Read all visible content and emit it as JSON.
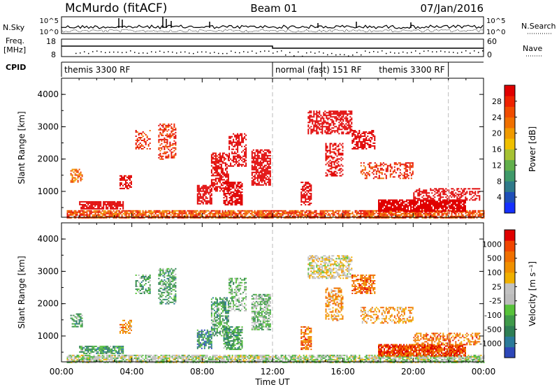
{
  "header": {
    "station": "McMurdo (fitACF)",
    "beam": "Beam 01",
    "date": "07/Jan/2016"
  },
  "strip_labels": {
    "nsky": "N.Sky",
    "nsky_hi": "10^5",
    "nsky_lo": "10^0",
    "nsearch": "N.Search",
    "nsearch_hi": "10^5",
    "nsearch_lo": "10^0",
    "freq_line1": "Freq.",
    "freq_line2": "[MHz]",
    "freq_hi": "18",
    "freq_lo": "8",
    "nave": "Nave",
    "nave_hi": "60",
    "nave_lo": "0",
    "cpid": "CPID"
  },
  "cpid_segments": [
    {
      "label": "themis 3300 RF",
      "start_hour": 0.0,
      "end_hour": 12.0
    },
    {
      "label": "normal (fast) 151 RF",
      "start_hour": 12.0,
      "end_hour": 14.8
    },
    {
      "label": "themis 3300 RF",
      "start_hour": 14.8,
      "end_hour": 22.0
    }
  ],
  "chart_data": [
    {
      "type": "heatmap",
      "name": "power-panel",
      "xlabel": "Time UT",
      "ylabel": "Slant Range [km]",
      "xlim": [
        0,
        24
      ],
      "ylim": [
        200,
        4500
      ],
      "x_ticks": [
        "00:00",
        "04:00",
        "08:00",
        "12:00",
        "16:00",
        "20:00",
        "00:00"
      ],
      "y_ticks": [
        "1000",
        "2000",
        "3000",
        "4000"
      ],
      "colorbar": {
        "label": "Power [dB]",
        "range": [
          0,
          32
        ],
        "ticks": [
          "4",
          "8",
          "12",
          "16",
          "20",
          "24",
          "28"
        ],
        "colors": [
          "#1530ff",
          "#1f4fb8",
          "#2f7a8a",
          "#3f9a6a",
          "#62b04c",
          "#a6c233",
          "#f0c000",
          "#f09a00",
          "#f07000",
          "#f04c00",
          "#ee2200",
          "#e00000"
        ]
      },
      "blobs": [
        {
          "t0": 0.3,
          "t1": 24,
          "r0": 200,
          "r1": 420,
          "v": 9,
          "d": 0.8
        },
        {
          "t0": 1.0,
          "t1": 3.5,
          "r0": 450,
          "r1": 700,
          "v": 20,
          "d": 0.8
        },
        {
          "t0": 0.5,
          "t1": 1.2,
          "r0": 1300,
          "r1": 1700,
          "v": 8,
          "d": 0.5
        },
        {
          "t0": 3.3,
          "t1": 4.0,
          "r0": 1100,
          "r1": 1500,
          "v": 12,
          "d": 0.6
        },
        {
          "t0": 4.2,
          "t1": 5.0,
          "r0": 2300,
          "r1": 2900,
          "v": 10,
          "d": 0.4
        },
        {
          "t0": 5.5,
          "t1": 6.5,
          "r0": 2000,
          "r1": 3100,
          "v": 10,
          "d": 0.5
        },
        {
          "t0": 7.7,
          "t1": 8.5,
          "r0": 600,
          "r1": 1200,
          "v": 22,
          "d": 0.7
        },
        {
          "t0": 8.5,
          "t1": 9.5,
          "r0": 1000,
          "r1": 2200,
          "v": 12,
          "d": 0.6
        },
        {
          "t0": 9.2,
          "t1": 10.3,
          "r0": 600,
          "r1": 1300,
          "v": 24,
          "d": 0.7
        },
        {
          "t0": 9.5,
          "t1": 10.5,
          "r0": 1800,
          "r1": 2800,
          "v": 14,
          "d": 0.5
        },
        {
          "t0": 10.8,
          "t1": 11.9,
          "r0": 1200,
          "r1": 2300,
          "v": 20,
          "d": 0.7
        },
        {
          "t0": 13.6,
          "t1": 14.2,
          "r0": 600,
          "r1": 1300,
          "v": 24,
          "d": 0.7
        },
        {
          "t0": 14.0,
          "t1": 16.5,
          "r0": 2800,
          "r1": 3500,
          "v": 14,
          "d": 0.6
        },
        {
          "t0": 15.0,
          "t1": 16.0,
          "r0": 1500,
          "r1": 2500,
          "v": 12,
          "d": 0.5
        },
        {
          "t0": 16.5,
          "t1": 17.8,
          "r0": 2300,
          "r1": 2900,
          "v": 20,
          "d": 0.6
        },
        {
          "t0": 17.0,
          "t1": 20.0,
          "r0": 1400,
          "r1": 1900,
          "v": 10,
          "d": 0.4
        },
        {
          "t0": 18.0,
          "t1": 23.0,
          "r0": 400,
          "r1": 750,
          "v": 27,
          "d": 0.85
        },
        {
          "t0": 20.0,
          "t1": 23.8,
          "r0": 750,
          "r1": 1100,
          "v": 14,
          "d": 0.5
        }
      ]
    },
    {
      "type": "heatmap",
      "name": "velocity-panel",
      "xlabel": "Time UT",
      "ylabel": "Slant Range [km]",
      "xlim": [
        0,
        24
      ],
      "ylim": [
        200,
        4500
      ],
      "x_ticks": [
        "00:00",
        "04:00",
        "08:00",
        "12:00",
        "16:00",
        "20:00",
        "00:00"
      ],
      "y_ticks": [
        "1000",
        "2000",
        "3000",
        "4000"
      ],
      "colorbar": {
        "label": "Velocity [m s⁻¹]",
        "range": [
          -1250,
          1250
        ],
        "ticks": [
          "1000",
          "500",
          "100",
          "25",
          "-25",
          "-100",
          "-500",
          "-1000"
        ],
        "colors": [
          "#2d47b8",
          "#2a7a9a",
          "#2e7f55",
          "#3f9a4a",
          "#57c23a",
          "#bcbcbc",
          "#c2c2c2",
          "#f0b000",
          "#f09000",
          "#f07000",
          "#f04600",
          "#e00000"
        ]
      },
      "blobs": [
        {
          "t0": 0.3,
          "t1": 24,
          "r0": 200,
          "r1": 420,
          "v": 5,
          "d": 0.8
        },
        {
          "t0": 1.0,
          "t1": 3.5,
          "r0": 450,
          "r1": 700,
          "v": 3,
          "d": 0.8
        },
        {
          "t0": 0.5,
          "t1": 1.2,
          "r0": 1300,
          "r1": 1700,
          "v": 3,
          "d": 0.5
        },
        {
          "t0": 3.3,
          "t1": 4.0,
          "r0": 1100,
          "r1": 1500,
          "v": 8,
          "d": 0.6
        },
        {
          "t0": 4.2,
          "t1": 5.0,
          "r0": 2300,
          "r1": 2900,
          "v": 3,
          "d": 0.4
        },
        {
          "t0": 5.5,
          "t1": 6.5,
          "r0": 2000,
          "r1": 3100,
          "v": 3,
          "d": 0.5
        },
        {
          "t0": 7.7,
          "t1": 8.5,
          "r0": 600,
          "r1": 1200,
          "v": 2,
          "d": 0.7
        },
        {
          "t0": 8.5,
          "t1": 9.5,
          "r0": 1000,
          "r1": 2200,
          "v": 3,
          "d": 0.6
        },
        {
          "t0": 9.2,
          "t1": 10.3,
          "r0": 600,
          "r1": 1300,
          "v": 3,
          "d": 0.7
        },
        {
          "t0": 9.5,
          "t1": 10.5,
          "r0": 1800,
          "r1": 2800,
          "v": 4,
          "d": 0.5
        },
        {
          "t0": 10.8,
          "t1": 11.9,
          "r0": 1200,
          "r1": 2300,
          "v": 4,
          "d": 0.7
        },
        {
          "t0": 13.6,
          "t1": 14.2,
          "r0": 600,
          "r1": 1300,
          "v": 9,
          "d": 0.7
        },
        {
          "t0": 14.0,
          "t1": 16.5,
          "r0": 2800,
          "r1": 3500,
          "v": 6,
          "d": 0.6
        },
        {
          "t0": 15.0,
          "t1": 16.0,
          "r0": 1500,
          "r1": 2500,
          "v": 8,
          "d": 0.5
        },
        {
          "t0": 16.5,
          "t1": 17.8,
          "r0": 2300,
          "r1": 2900,
          "v": 9,
          "d": 0.6
        },
        {
          "t0": 17.0,
          "t1": 20.0,
          "r0": 1400,
          "r1": 1900,
          "v": 8,
          "d": 0.4
        },
        {
          "t0": 18.0,
          "t1": 23.0,
          "r0": 400,
          "r1": 750,
          "v": 10,
          "d": 0.85
        },
        {
          "t0": 20.0,
          "t1": 23.8,
          "r0": 750,
          "r1": 1100,
          "v": 9,
          "d": 0.5
        }
      ]
    }
  ]
}
